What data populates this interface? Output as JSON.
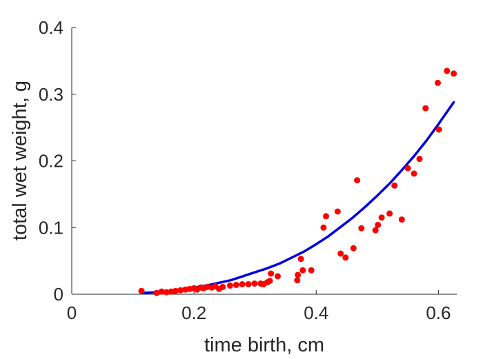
{
  "chart_data": {
    "type": "scatter",
    "xlabel": "time birth, cm",
    "ylabel": "total wet weight, g",
    "xlim": [
      0,
      0.63
    ],
    "ylim": [
      0,
      0.4
    ],
    "xticks": [
      0,
      0.2,
      0.4,
      0.6
    ],
    "xtick_labels": [
      "0",
      "0.2",
      "0.4",
      "0.6"
    ],
    "yticks": [
      0,
      0.1,
      0.2,
      0.3,
      0.4
    ],
    "ytick_labels": [
      "0",
      "0.1",
      "0.2",
      "0.3",
      "0.4"
    ],
    "grid": false,
    "colors": {
      "points": "#ff0000",
      "fit": "#0000e6",
      "axes": "#262626"
    },
    "series": [
      {
        "kind": "points",
        "points": [
          [
            0.114,
            0.005
          ],
          [
            0.139,
            0.002
          ],
          [
            0.147,
            0.004
          ],
          [
            0.155,
            0.003
          ],
          [
            0.163,
            0.004
          ],
          [
            0.17,
            0.005
          ],
          [
            0.178,
            0.006
          ],
          [
            0.186,
            0.007
          ],
          [
            0.193,
            0.008
          ],
          [
            0.2,
            0.009
          ],
          [
            0.205,
            0.007
          ],
          [
            0.211,
            0.01
          ],
          [
            0.216,
            0.009
          ],
          [
            0.222,
            0.011
          ],
          [
            0.229,
            0.01
          ],
          [
            0.235,
            0.012
          ],
          [
            0.241,
            0.008
          ],
          [
            0.247,
            0.011
          ],
          [
            0.259,
            0.013
          ],
          [
            0.269,
            0.014
          ],
          [
            0.279,
            0.015
          ],
          [
            0.289,
            0.015
          ],
          [
            0.299,
            0.016
          ],
          [
            0.309,
            0.016
          ],
          [
            0.314,
            0.015
          ],
          [
            0.32,
            0.018
          ],
          [
            0.324,
            0.02
          ],
          [
            0.326,
            0.031
          ],
          [
            0.337,
            0.027
          ],
          [
            0.369,
            0.021
          ],
          [
            0.37,
            0.029
          ],
          [
            0.375,
            0.053
          ],
          [
            0.378,
            0.036
          ],
          [
            0.392,
            0.036
          ],
          [
            0.412,
            0.1
          ],
          [
            0.416,
            0.117
          ],
          [
            0.435,
            0.124
          ],
          [
            0.44,
            0.061
          ],
          [
            0.448,
            0.055
          ],
          [
            0.461,
            0.069
          ],
          [
            0.467,
            0.171
          ],
          [
            0.474,
            0.099
          ],
          [
            0.497,
            0.096
          ],
          [
            0.501,
            0.104
          ],
          [
            0.507,
            0.115
          ],
          [
            0.52,
            0.121
          ],
          [
            0.528,
            0.163
          ],
          [
            0.54,
            0.112
          ],
          [
            0.55,
            0.189
          ],
          [
            0.56,
            0.181
          ],
          [
            0.569,
            0.203
          ],
          [
            0.579,
            0.279
          ],
          [
            0.599,
            0.317
          ],
          [
            0.601,
            0.247
          ],
          [
            0.614,
            0.335
          ],
          [
            0.625,
            0.331
          ]
        ]
      },
      {
        "kind": "fit",
        "x": [
          0.115,
          0.14,
          0.16,
          0.18,
          0.2,
          0.22,
          0.24,
          0.26,
          0.28,
          0.3,
          0.32,
          0.34,
          0.36,
          0.38,
          0.4,
          0.42,
          0.44,
          0.46,
          0.48,
          0.5,
          0.52,
          0.54,
          0.56,
          0.58,
          0.6,
          0.625
        ],
        "y": [
          0.002,
          0.003,
          0.005,
          0.007,
          0.01,
          0.013,
          0.017,
          0.021,
          0.027,
          0.033,
          0.039,
          0.046,
          0.055,
          0.064,
          0.075,
          0.087,
          0.101,
          0.115,
          0.131,
          0.148,
          0.166,
          0.186,
          0.207,
          0.23,
          0.255,
          0.288
        ]
      }
    ]
  }
}
